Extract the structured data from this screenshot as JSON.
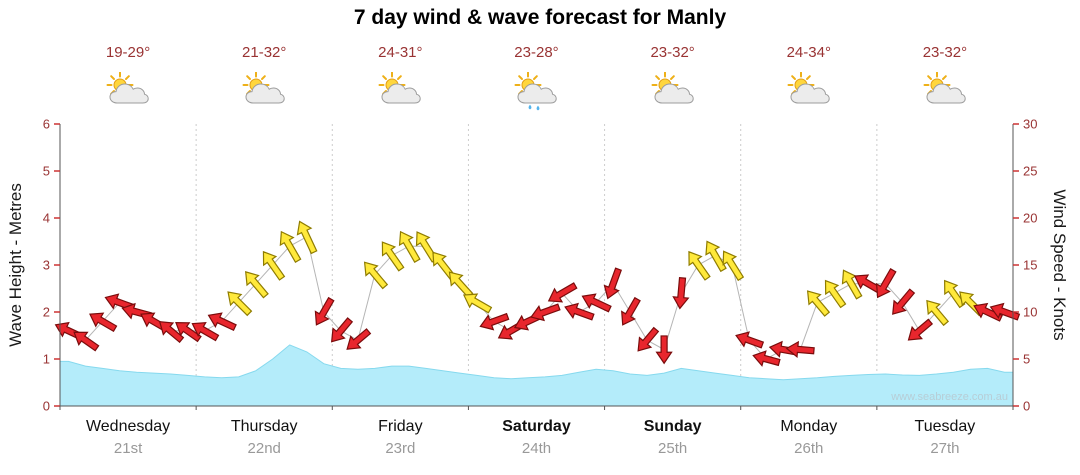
{
  "title": "7 day wind & wave forecast for Manly",
  "watermark": "www.seabreeze.com.au",
  "colors": {
    "wave_fill": "#b4ecfa",
    "wave_edge": "#86d9ee",
    "arrow_red": "#e8262d",
    "arrow_red_outline": "#7a0c0c",
    "arrow_yellow": "#ffe93b",
    "arrow_yellow_outline": "#8f7c00",
    "tick_mark": "#cc3333",
    "axis_tick_text": "#993333",
    "temp_text": "#993333",
    "date_text": "#999999",
    "watermark_text": "#b7cdd6"
  },
  "days": [
    {
      "name": "Wednesday",
      "date": "21st",
      "temp": "19-29°",
      "icon": "sun-cloud",
      "bold": false
    },
    {
      "name": "Thursday",
      "date": "22nd",
      "temp": "21-32°",
      "icon": "sun-cloud",
      "bold": false
    },
    {
      "name": "Friday",
      "date": "23rd",
      "temp": "24-31°",
      "icon": "sun-cloud",
      "bold": false
    },
    {
      "name": "Saturday",
      "date": "24th",
      "temp": "23-28°",
      "icon": "sun-cloud-rain",
      "bold": true
    },
    {
      "name": "Sunday",
      "date": "25th",
      "temp": "23-32°",
      "icon": "sun-cloud",
      "bold": true
    },
    {
      "name": "Monday",
      "date": "26th",
      "temp": "24-34°",
      "icon": "sun-cloud",
      "bold": false
    },
    {
      "name": "Tuesday",
      "date": "27th",
      "temp": "23-32°",
      "icon": "sun-cloud",
      "bold": false
    }
  ],
  "chart_data": {
    "type": "area",
    "title": "7 day wind & wave forecast for Manly",
    "categories": [
      "Wednesday 21st",
      "Thursday 22nd",
      "Friday 23rd",
      "Saturday 24th",
      "Sunday 25th",
      "Monday 26th",
      "Tuesday 27th"
    ],
    "samples_per_day": 8,
    "left_axis": {
      "label": "Wave Height - Metres",
      "range": [
        0,
        6
      ],
      "ticks": [
        0,
        1,
        2,
        3,
        4,
        5,
        6
      ]
    },
    "right_axis": {
      "label": "Wind Speed - Knots",
      "range": [
        0,
        30
      ],
      "ticks": [
        0,
        5,
        10,
        15,
        20,
        25,
        30
      ]
    },
    "grid": "vertical day separators, dotted",
    "series": [
      {
        "name": "Wave Height (m)",
        "type": "area",
        "axis": "left",
        "values": [
          0.95,
          0.85,
          0.8,
          0.75,
          0.72,
          0.7,
          0.68,
          0.65,
          0.62,
          0.6,
          0.62,
          0.75,
          1.0,
          1.3,
          1.15,
          0.9,
          0.8,
          0.78,
          0.8,
          0.85,
          0.85,
          0.8,
          0.75,
          0.7,
          0.65,
          0.6,
          0.58,
          0.6,
          0.62,
          0.65,
          0.72,
          0.78,
          0.75,
          0.68,
          0.65,
          0.7,
          0.8,
          0.75,
          0.7,
          0.65,
          0.6,
          0.58,
          0.56,
          0.58,
          0.6,
          0.63,
          0.65,
          0.67,
          0.68,
          0.66,
          0.65,
          0.68,
          0.72,
          0.78,
          0.8,
          0.72
        ]
      },
      {
        "name": "Wind Speed (knots)",
        "type": "wind-arrows",
        "axis": "right",
        "values": [
          8,
          7,
          9,
          11,
          10,
          9,
          8,
          8,
          8,
          9,
          11,
          13,
          15,
          17,
          18,
          10,
          8,
          7,
          14,
          16,
          17,
          17,
          15,
          13,
          11,
          9,
          8,
          9,
          10,
          12,
          10,
          11,
          13,
          10,
          7,
          6,
          12,
          15,
          16,
          15,
          7,
          5,
          6,
          6,
          11,
          12,
          13,
          13,
          13,
          11,
          8,
          10,
          12,
          11,
          10,
          10
        ],
        "directions_deg": [
          205,
          215,
          210,
          200,
          195,
          210,
          220,
          215,
          210,
          205,
          225,
          230,
          235,
          240,
          245,
          120,
          130,
          140,
          230,
          235,
          240,
          238,
          232,
          228,
          210,
          160,
          150,
          155,
          160,
          150,
          200,
          205,
          110,
          120,
          130,
          90,
          95,
          235,
          240,
          238,
          200,
          195,
          190,
          185,
          230,
          235,
          240,
          210,
          120,
          130,
          140,
          230,
          235,
          225,
          205,
          200
        ],
        "colors": [
          "red",
          "red",
          "red",
          "red",
          "red",
          "red",
          "red",
          "red",
          "red",
          "red",
          "yellow",
          "yellow",
          "yellow",
          "yellow",
          "yellow",
          "red",
          "red",
          "red",
          "yellow",
          "yellow",
          "yellow",
          "yellow",
          "yellow",
          "yellow",
          "yellow",
          "red",
          "red",
          "red",
          "red",
          "red",
          "red",
          "red",
          "red",
          "red",
          "red",
          "red",
          "red",
          "yellow",
          "yellow",
          "yellow",
          "red",
          "red",
          "red",
          "red",
          "yellow",
          "yellow",
          "yellow",
          "red",
          "red",
          "red",
          "red",
          "yellow",
          "yellow",
          "yellow",
          "red",
          "red"
        ]
      }
    ]
  }
}
